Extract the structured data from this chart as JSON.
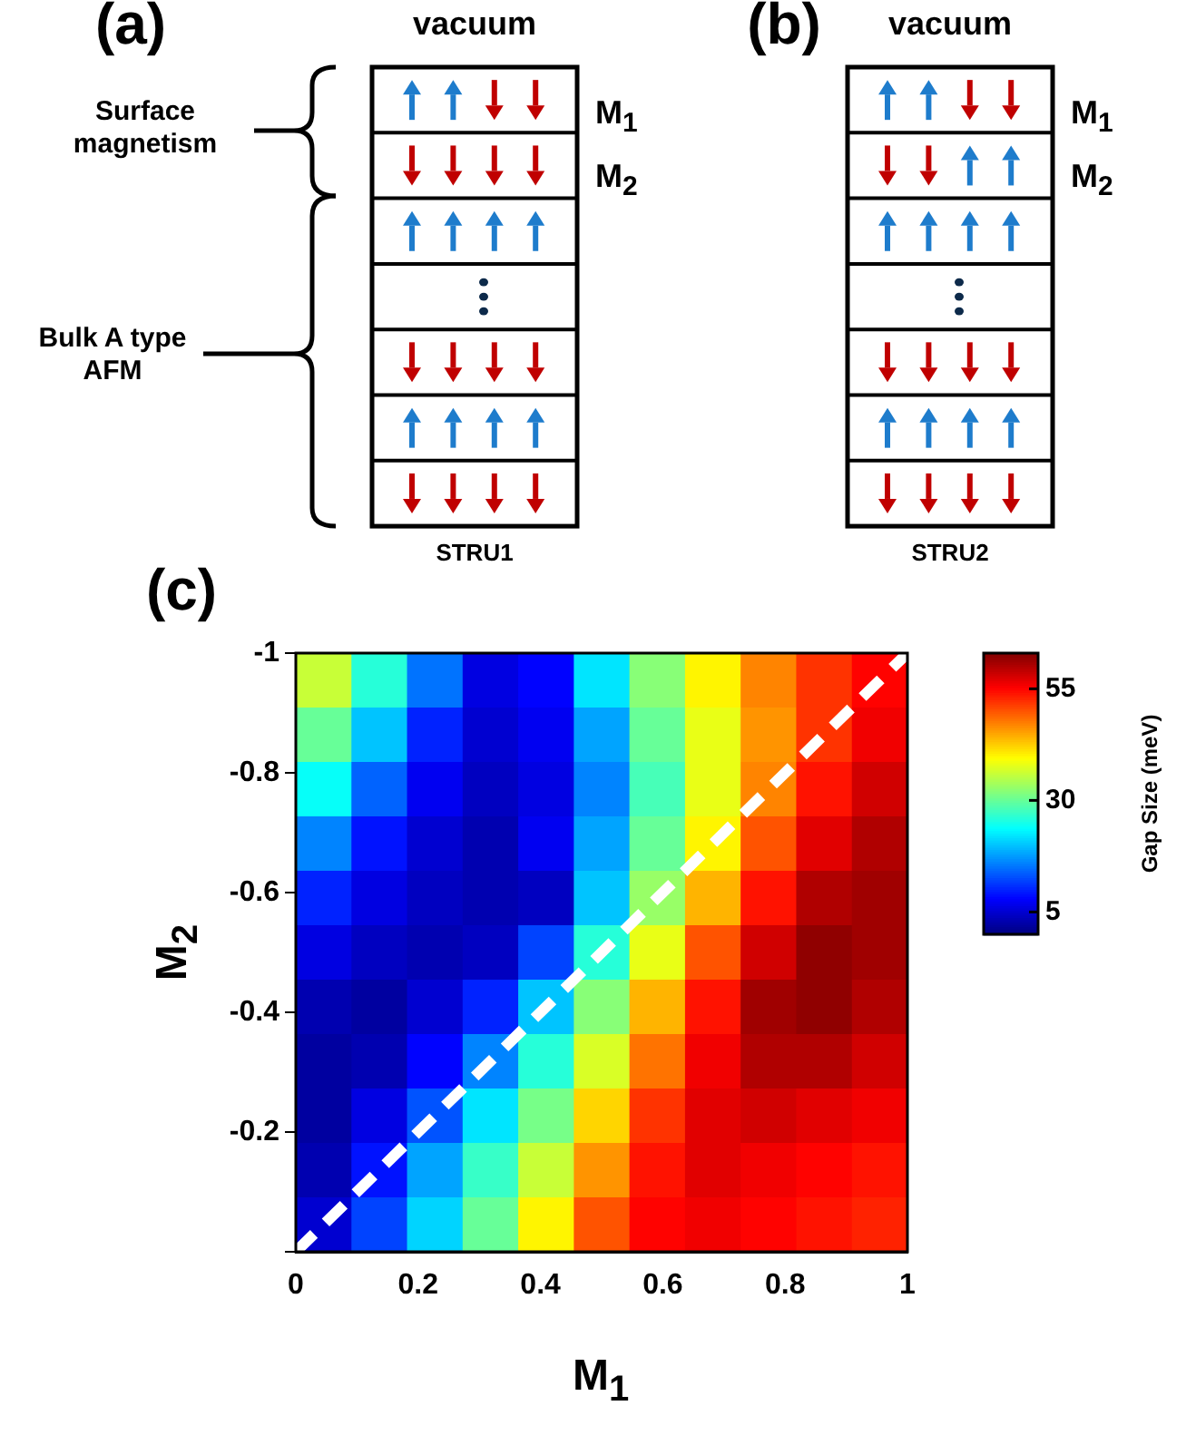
{
  "chart_data": [
    {
      "type": "other",
      "title": "(a)",
      "annotations": [
        "vacuum",
        "M$_{1}$",
        "M$_{2}$",
        "Surface magnetism",
        "Bulk A type AFM",
        "STRU1"
      ]
    },
    {
      "type": "other",
      "title": "(b)",
      "annotations": [
        "vacuum",
        "M$_{1}$",
        "M$_{2}$",
        "STRU2"
      ]
    },
    {
      "type": "heatmap",
      "title": "(c)",
      "xlabel": "M$_{1}$",
      "ylabel": "M$_{2}$",
      "xlim": [
        0,
        1
      ],
      "ylim": [
        0,
        -1
      ],
      "xticks": [
        0,
        0.2,
        0.4,
        0.6,
        0.8,
        1
      ],
      "yticks": [
        {
          "value": 0,
          "label": null
        },
        -0.2,
        -0.4,
        -0.6,
        -0.8,
        -1
      ],
      "clim": [
        0,
        63
      ],
      "cticks": [
        5,
        30,
        55
      ],
      "clabel": "Gap Size (meV)",
      "cells": [
        [
          36,
          26,
          15,
          6,
          8,
          22,
          32,
          40,
          47,
          52,
          55
        ],
        [
          30,
          20,
          10,
          5,
          7,
          18,
          30,
          38,
          46,
          52,
          56
        ],
        [
          24,
          14,
          7,
          4,
          6,
          16,
          28,
          38,
          47,
          54,
          58
        ],
        [
          16,
          9,
          5,
          3,
          7,
          18,
          30,
          40,
          50,
          57,
          60
        ],
        [
          10,
          6,
          4,
          3,
          4,
          20,
          33,
          44,
          54,
          60,
          61
        ],
        [
          6,
          4,
          3,
          4,
          12,
          26,
          38,
          50,
          58,
          62,
          61
        ],
        [
          3,
          2,
          5,
          10,
          20,
          32,
          44,
          54,
          61,
          62,
          60
        ],
        [
          2,
          3,
          8,
          16,
          26,
          37,
          48,
          56,
          60,
          60,
          58
        ],
        [
          2,
          6,
          13,
          22,
          31,
          42,
          52,
          57,
          58,
          57,
          56
        ],
        [
          3,
          9,
          18,
          27,
          36,
          46,
          54,
          57,
          56,
          55,
          54
        ],
        [
          5,
          12,
          21,
          30,
          40,
          50,
          55,
          56,
          55,
          54,
          53
        ]
      ],
      "series": [
        {
          "type": "line",
          "x": [
            0,
            1
          ],
          "values": [
            0,
            -1
          ],
          "color": "#ffffff",
          "line_style": "dashed"
        }
      ]
    }
  ]
}
